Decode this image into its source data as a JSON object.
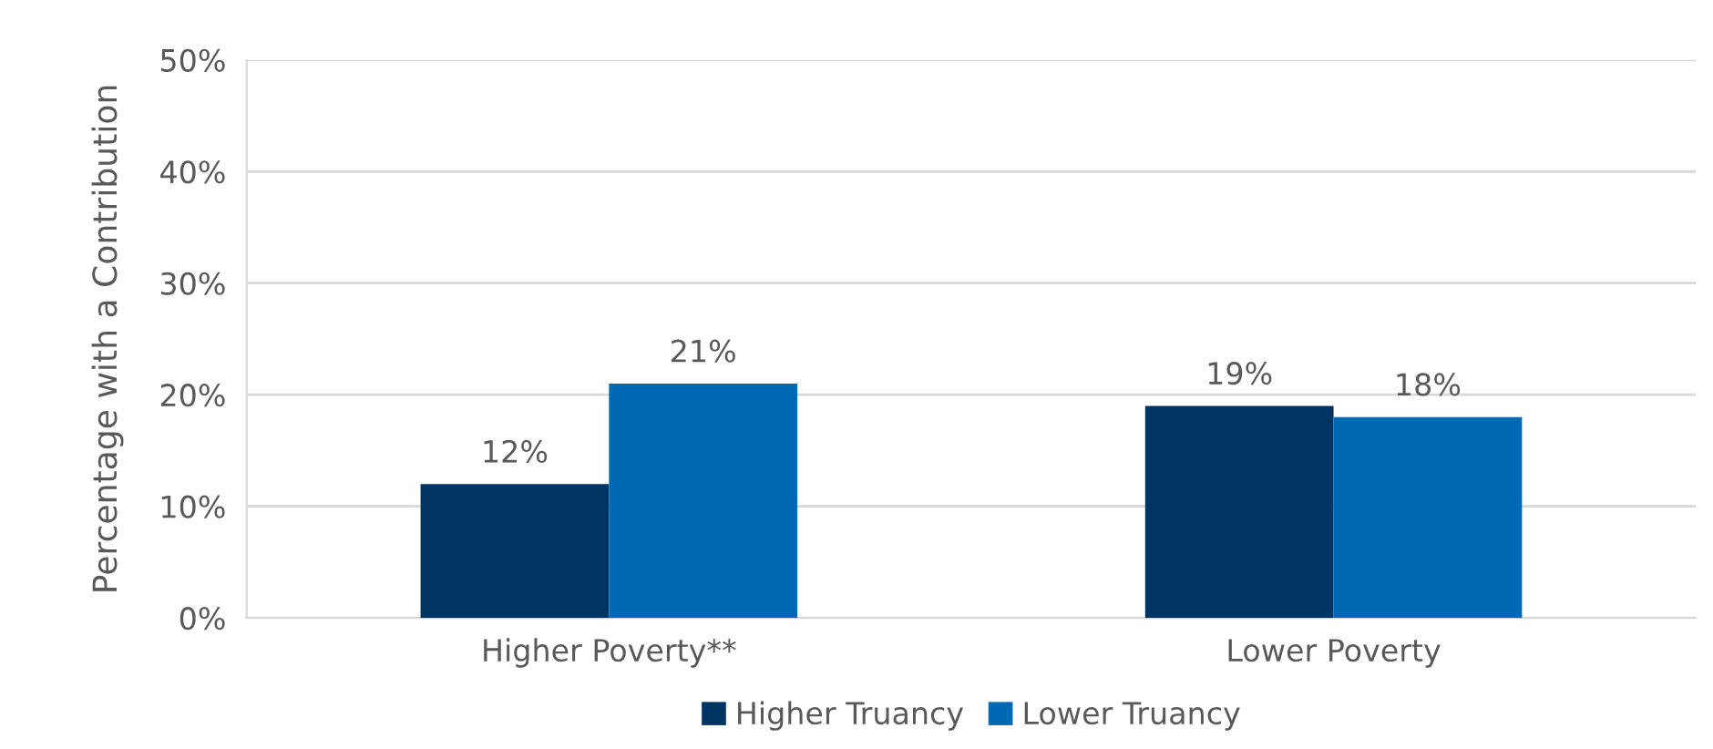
{
  "chart_data": {
    "type": "bar",
    "ylabel": "Percentage with a Contribution",
    "categories": [
      "Higher Poverty**",
      "Lower Poverty"
    ],
    "series": [
      {
        "name": "Higher Truancy",
        "color": "#003462",
        "values": [
          12,
          19
        ],
        "value_labels": [
          "12%",
          "19%"
        ]
      },
      {
        "name": "Lower Truancy",
        "color": "#0069b4",
        "values": [
          21,
          18
        ],
        "value_labels": [
          "21%",
          "18%"
        ]
      }
    ],
    "ylim": [
      0,
      50
    ],
    "yticks": [
      {
        "value": 0,
        "label": "0%"
      },
      {
        "value": 10,
        "label": "10%"
      },
      {
        "value": 20,
        "label": "20%"
      },
      {
        "value": 30,
        "label": "30%"
      },
      {
        "value": 40,
        "label": "40%"
      },
      {
        "value": 50,
        "label": "50%"
      }
    ],
    "grid": "y",
    "legend": "bottom"
  }
}
